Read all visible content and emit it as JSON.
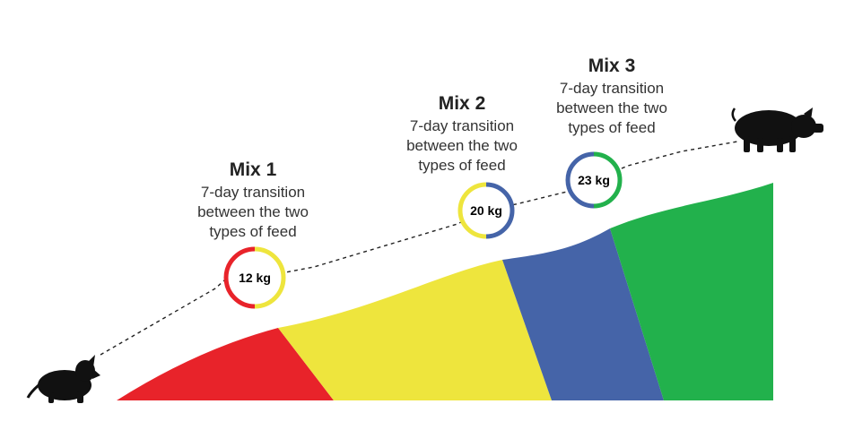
{
  "stages": [
    {
      "id": "mix1",
      "title": "Mix 1",
      "desc_lines": [
        "7-day transition",
        "between the two",
        "types of feed"
      ],
      "weight": "12 kg"
    },
    {
      "id": "mix2",
      "title": "Mix 2",
      "desc_lines": [
        "7-day transition",
        "between the two",
        "types of feed"
      ],
      "weight": "20 kg"
    },
    {
      "id": "mix3",
      "title": "Mix 3",
      "desc_lines": [
        "7-day transition",
        "between the two",
        "types of feed"
      ],
      "weight": "23 kg"
    }
  ],
  "colors": {
    "red": "#e8232a",
    "yellow": "#eee53d",
    "blue": "#4564a8",
    "green": "#22b14c",
    "pig": "#111111",
    "dash": "#222222"
  },
  "icons": [
    "piglet-icon",
    "adult-pig-icon"
  ]
}
